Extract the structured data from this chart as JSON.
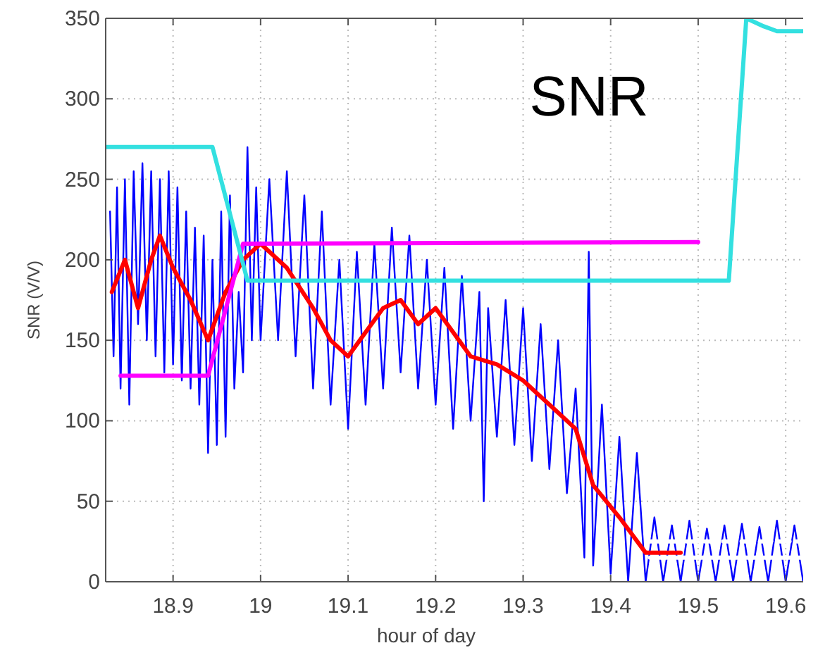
{
  "chart_data": {
    "type": "line",
    "title": "SNR",
    "xlabel": "hour of day",
    "ylabel": "SNR (V/V)",
    "xlim": [
      18.823,
      19.62
    ],
    "ylim": [
      0,
      350
    ],
    "xticks": [
      18.9,
      19,
      19.1,
      19.2,
      19.3,
      19.4,
      19.5,
      19.6
    ],
    "yticks": [
      0,
      50,
      100,
      150,
      200,
      250,
      300,
      350
    ],
    "grid": true,
    "series": [
      {
        "color": "#0000ff",
        "x": [
          18.828,
          18.832,
          18.836,
          18.84,
          18.845,
          18.85,
          18.855,
          18.86,
          18.865,
          18.87,
          18.875,
          18.88,
          18.885,
          18.89,
          18.895,
          18.9,
          18.905,
          18.91,
          18.915,
          18.92,
          18.925,
          18.93,
          18.935,
          18.94,
          18.945,
          18.95,
          18.955,
          18.96,
          18.965,
          18.97,
          18.975,
          18.98,
          18.985,
          18.99,
          18.995,
          19,
          19.01,
          19.02,
          19.03,
          19.04,
          19.05,
          19.06,
          19.07,
          19.08,
          19.09,
          19.1,
          19.11,
          19.12,
          19.13,
          19.14,
          19.15,
          19.16,
          19.17,
          19.18,
          19.19,
          19.2,
          19.21,
          19.22,
          19.23,
          19.24,
          19.25,
          19.255,
          19.26,
          19.27,
          19.28,
          19.29,
          19.3,
          19.31,
          19.32,
          19.33,
          19.34,
          19.35,
          19.36,
          19.37,
          19.375,
          19.38,
          19.39,
          19.4,
          19.41,
          19.42,
          19.43,
          19.44,
          19.45,
          19.46,
          19.47,
          19.48,
          19.49,
          19.5,
          19.51,
          19.52,
          19.53,
          19.54,
          19.55,
          19.56,
          19.57,
          19.58,
          19.59,
          19.6,
          19.61,
          19.62
        ],
        "values": [
          230,
          140,
          245,
          120,
          250,
          110,
          255,
          160,
          260,
          150,
          255,
          140,
          250,
          130,
          255,
          135,
          245,
          125,
          230,
          120,
          220,
          110,
          215,
          80,
          200,
          85,
          230,
          90,
          240,
          120,
          180,
          130,
          270,
          150,
          245,
          150,
          250,
          150,
          255,
          140,
          240,
          120,
          230,
          110,
          200,
          95,
          205,
          110,
          210,
          120,
          220,
          130,
          215,
          120,
          200,
          110,
          195,
          95,
          190,
          100,
          180,
          50,
          170,
          90,
          175,
          85,
          170,
          75,
          160,
          70,
          150,
          55,
          120,
          15,
          205,
          10,
          110,
          5,
          90,
          0,
          80,
          0,
          40,
          0,
          35,
          0,
          38,
          0,
          33,
          0,
          35,
          0,
          36,
          0,
          34,
          0,
          38,
          0,
          35,
          0
        ]
      },
      {
        "color": "#ff0000",
        "x": [
          18.83,
          18.845,
          18.86,
          18.875,
          18.885,
          18.9,
          18.92,
          18.94,
          18.96,
          18.98,
          19,
          19.03,
          19.06,
          19.08,
          19.1,
          19.12,
          19.14,
          19.16,
          19.18,
          19.2,
          19.22,
          19.24,
          19.27,
          19.3,
          19.33,
          19.36,
          19.38,
          19.41,
          19.44,
          19.48
        ],
        "values": [
          180,
          200,
          170,
          200,
          215,
          195,
          175,
          150,
          180,
          200,
          210,
          195,
          170,
          150,
          140,
          155,
          170,
          175,
          160,
          170,
          155,
          140,
          135,
          125,
          110,
          95,
          60,
          40,
          18,
          18
        ]
      },
      {
        "color": "#ff00ff",
        "x": [
          18.84,
          18.94,
          18.98,
          19.5
        ],
        "values": [
          128,
          128,
          210,
          211
        ]
      },
      {
        "color": "#33e0e0",
        "x": [
          18.823,
          18.945,
          18.985,
          19.535,
          19.555,
          19.575,
          19.59,
          19.62
        ],
        "values": [
          270,
          270,
          187,
          187,
          350,
          345,
          342,
          342
        ]
      },
      {
        "color": "#ffffff",
        "line_style": "dashed",
        "x": [
          19.445,
          19.62
        ],
        "values": [
          25,
          25
        ]
      },
      {
        "color": "#ffffff",
        "x": [
          19.445,
          19.62
        ],
        "values": [
          15,
          15
        ]
      }
    ]
  }
}
